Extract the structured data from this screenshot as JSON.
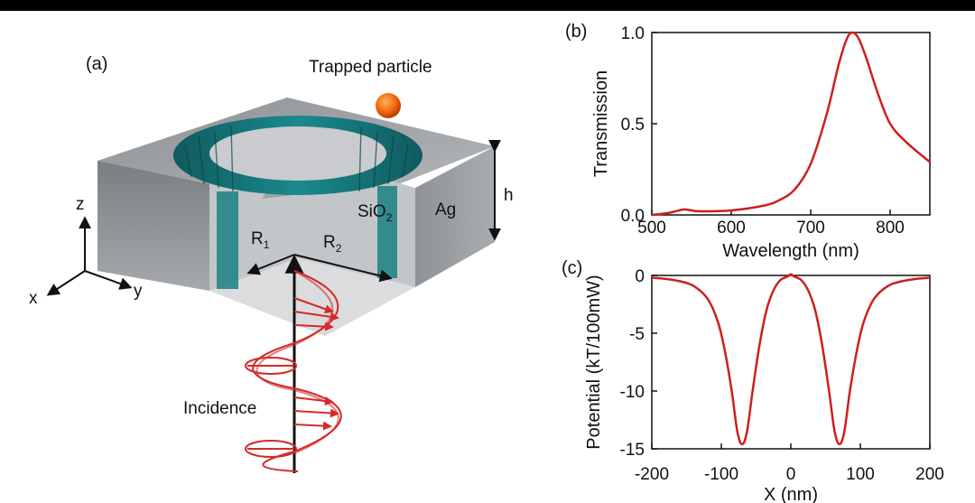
{
  "figure": {
    "panel_a": {
      "label": "(a)",
      "trapped_particle": "Trapped particle",
      "material_ag": "Ag",
      "material_sio2": "SiO",
      "material_sio2_sub": "2",
      "height": "h",
      "r1": "R",
      "r1_sub": "1",
      "r2": "R",
      "r2_sub": "2",
      "axis_z": "z",
      "axis_x": "x",
      "axis_y": "y",
      "incidence": "Incidence"
    },
    "panel_b": {
      "label": "(b)"
    },
    "panel_c": {
      "label": "(c)"
    }
  },
  "chart_data": [
    {
      "type": "line",
      "xlabel": "Wavelength (nm)",
      "ylabel": "Transmission",
      "xlim": [
        500,
        850
      ],
      "ylim": [
        0.0,
        1.0
      ],
      "xticks": [
        "500",
        "600",
        "700",
        "800"
      ],
      "yticks": [
        "0.0",
        "0.5",
        "1.0"
      ],
      "color": "#cc1f1f",
      "series": [
        {
          "x": [
            500,
            520,
            530,
            540,
            550,
            560,
            600,
            640,
            660,
            680,
            700,
            720,
            735,
            745,
            752,
            760,
            770,
            785,
            800,
            820,
            850
          ],
          "y": [
            0.0,
            0.01,
            0.02,
            0.03,
            0.025,
            0.02,
            0.025,
            0.05,
            0.08,
            0.14,
            0.28,
            0.55,
            0.82,
            0.96,
            1.0,
            0.97,
            0.86,
            0.66,
            0.5,
            0.4,
            0.29
          ]
        }
      ]
    },
    {
      "type": "line",
      "xlabel": "X (nm)",
      "ylabel": "Potential (kT/100mW)",
      "xlim": [
        -200,
        200
      ],
      "ylim": [
        -15,
        0
      ],
      "xticks": [
        "-200",
        "-100",
        "0",
        "100",
        "200"
      ],
      "yticks": [
        "0",
        "-5",
        "-10",
        "-15"
      ],
      "color": "#cc1f1f",
      "series": [
        {
          "x": [
            -200,
            -180,
            -160,
            -140,
            -120,
            -105,
            -95,
            -85,
            -77,
            -70,
            -63,
            -55,
            -45,
            -35,
            -25,
            -15,
            -5,
            0,
            5,
            15,
            25,
            35,
            45,
            55,
            63,
            70,
            77,
            85,
            95,
            105,
            120,
            140,
            160,
            180,
            200
          ],
          "y": [
            -0.2,
            -0.3,
            -0.5,
            -0.9,
            -2.0,
            -4.0,
            -6.5,
            -10.0,
            -13.5,
            -14.6,
            -13.5,
            -10.0,
            -6.0,
            -3.0,
            -1.3,
            -0.4,
            -0.1,
            0.1,
            -0.1,
            -0.4,
            -1.3,
            -3.0,
            -6.0,
            -10.0,
            -13.5,
            -14.6,
            -13.5,
            -10.0,
            -6.5,
            -4.0,
            -2.0,
            -0.9,
            -0.5,
            -0.3,
            -0.2
          ]
        }
      ]
    }
  ]
}
